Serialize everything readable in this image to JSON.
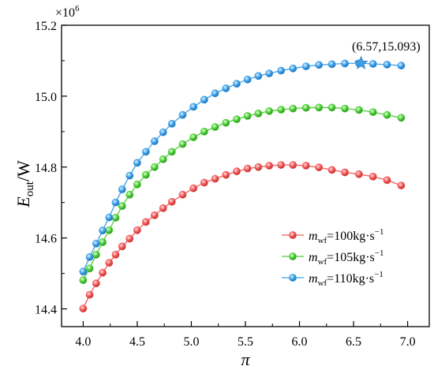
{
  "chart_data": {
    "type": "line",
    "title": "",
    "xlabel": "π",
    "ylabel": {
      "main": "E",
      "sub": "out",
      "suffix": "/W"
    },
    "y_multiplier": {
      "base": "×10",
      "exp": "6"
    },
    "xlim": [
      3.8,
      7.2
    ],
    "ylim": [
      14.35,
      15.2
    ],
    "x_ticks": [
      4.0,
      4.5,
      5.0,
      5.5,
      6.0,
      6.5,
      7.0
    ],
    "x_tick_labels": [
      "4.0",
      "4.5",
      "5.0",
      "5.5",
      "6.0",
      "6.5",
      "7.0"
    ],
    "y_ticks": [
      14.4,
      14.6,
      14.8,
      15.0,
      15.2
    ],
    "y_tick_labels": [
      "14.4",
      "14.6",
      "14.8",
      "15.0",
      "15.2"
    ],
    "grid": false,
    "legend_position": "bottom-right",
    "x": [
      4.0,
      4.06,
      4.12,
      4.18,
      4.24,
      4.3,
      4.36,
      4.43,
      4.5,
      4.58,
      4.66,
      4.74,
      4.82,
      4.92,
      5.02,
      5.12,
      5.22,
      5.32,
      5.42,
      5.52,
      5.62,
      5.72,
      5.83,
      5.94,
      6.06,
      6.18,
      6.3,
      6.42,
      6.55,
      6.68,
      6.81,
      6.94
    ],
    "series": [
      {
        "name": "m_wf=100kg·s⁻¹",
        "legend": {
          "m": "m",
          "sub": "wf",
          "text": "=100kg·s",
          "exp": "−1"
        },
        "color": "#f25a5a",
        "values": [
          14.401,
          14.44,
          14.472,
          14.502,
          14.53,
          14.553,
          14.576,
          14.598,
          14.622,
          14.645,
          14.664,
          14.684,
          14.702,
          14.722,
          14.74,
          14.756,
          14.767,
          14.778,
          14.788,
          14.796,
          14.8,
          14.804,
          14.806,
          14.806,
          14.804,
          14.799,
          14.792,
          14.785,
          14.78,
          14.773,
          14.763,
          14.748
        ]
      },
      {
        "name": "m_wf=105kg·s⁻¹",
        "legend": {
          "m": "m",
          "sub": "wf",
          "text": "=105kg·s",
          "exp": "−1"
        },
        "color": "#4fcf3a",
        "values": [
          14.481,
          14.514,
          14.553,
          14.588,
          14.622,
          14.657,
          14.69,
          14.722,
          14.751,
          14.778,
          14.8,
          14.822,
          14.843,
          14.865,
          14.884,
          14.9,
          14.913,
          14.925,
          14.935,
          14.944,
          14.951,
          14.958,
          14.962,
          14.965,
          14.967,
          14.968,
          14.968,
          14.965,
          14.961,
          14.955,
          14.947,
          14.939
        ]
      },
      {
        "name": "m_wf=110kg·s⁻¹",
        "legend": {
          "m": "m",
          "sub": "wf",
          "text": "=110kg·s",
          "exp": "−1"
        },
        "color": "#3ea0e8",
        "values": [
          14.505,
          14.546,
          14.584,
          14.621,
          14.658,
          14.7,
          14.737,
          14.776,
          14.812,
          14.843,
          14.873,
          14.898,
          14.922,
          14.947,
          14.97,
          14.99,
          15.008,
          15.022,
          15.035,
          15.047,
          15.057,
          15.064,
          15.072,
          15.078,
          15.084,
          15.088,
          15.09,
          15.092,
          15.093,
          15.091,
          15.089,
          15.086
        ]
      }
    ],
    "marker_point": {
      "x": 6.57,
      "y": 15.093,
      "label": "(6.57,15.093)",
      "color": "#3ea0e8"
    }
  }
}
